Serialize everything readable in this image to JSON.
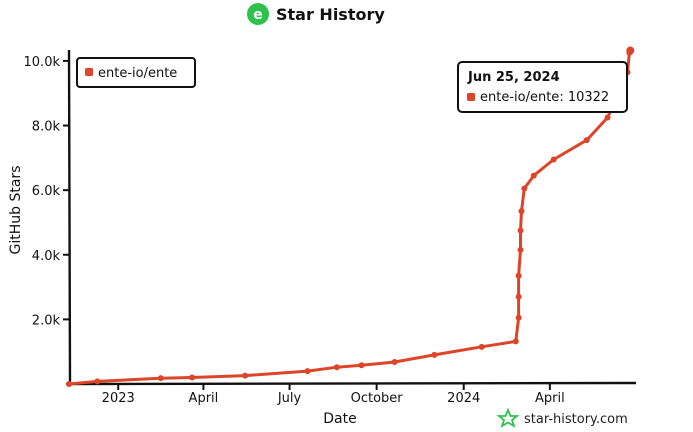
{
  "chart_data": {
    "type": "line",
    "title": "Star History",
    "xlabel": "Date",
    "ylabel": "GitHub Stars",
    "ylim": [
      0,
      10400
    ],
    "xlim": [
      "2022-11-10",
      "2024-07-01"
    ],
    "y_ticks": [
      {
        "value": 2000,
        "label": "2.0k"
      },
      {
        "value": 4000,
        "label": "4.0k"
      },
      {
        "value": 6000,
        "label": "6.0k"
      },
      {
        "value": 8000,
        "label": "8.0k"
      },
      {
        "value": 10000,
        "label": "10.0k"
      }
    ],
    "x_ticks": [
      {
        "date": "2023-01-01",
        "label": "2023"
      },
      {
        "date": "2023-04-01",
        "label": "April"
      },
      {
        "date": "2023-07-01",
        "label": "July"
      },
      {
        "date": "2023-10-01",
        "label": "October"
      },
      {
        "date": "2024-01-01",
        "label": "2024"
      },
      {
        "date": "2024-04-01",
        "label": "April"
      }
    ],
    "legend_position": "top-left",
    "series": [
      {
        "name": "ente-io/ente",
        "color": "#dd4528",
        "points": [
          {
            "x": "2022-11-10",
            "y": 0
          },
          {
            "x": "2022-12-10",
            "y": 80
          },
          {
            "x": "2023-02-15",
            "y": 180
          },
          {
            "x": "2023-03-20",
            "y": 200
          },
          {
            "x": "2023-05-15",
            "y": 260
          },
          {
            "x": "2023-07-20",
            "y": 400
          },
          {
            "x": "2023-08-20",
            "y": 520
          },
          {
            "x": "2023-09-15",
            "y": 580
          },
          {
            "x": "2023-10-20",
            "y": 680
          },
          {
            "x": "2023-12-01",
            "y": 900
          },
          {
            "x": "2024-01-20",
            "y": 1150
          },
          {
            "x": "2024-02-25",
            "y": 1320
          },
          {
            "x": "2024-02-28",
            "y": 2050
          },
          {
            "x": "2024-02-28",
            "y": 2700
          },
          {
            "x": "2024-02-28",
            "y": 3350
          },
          {
            "x": "2024-03-01",
            "y": 4150
          },
          {
            "x": "2024-03-01",
            "y": 4750
          },
          {
            "x": "2024-03-02",
            "y": 5350
          },
          {
            "x": "2024-03-05",
            "y": 6050
          },
          {
            "x": "2024-03-15",
            "y": 6450
          },
          {
            "x": "2024-04-05",
            "y": 6950
          },
          {
            "x": "2024-05-10",
            "y": 7550
          },
          {
            "x": "2024-06-01",
            "y": 8250
          },
          {
            "x": "2024-06-22",
            "y": 9650
          },
          {
            "x": "2024-06-24",
            "y": 10250
          },
          {
            "x": "2024-06-25",
            "y": 10322
          }
        ]
      }
    ],
    "tooltip": {
      "date": "Jun 25, 2024",
      "series": "ente-io/ente",
      "value": "10322"
    }
  },
  "watermark": "star-history.com",
  "colors": {
    "series": "#dd4528",
    "axis": "#111111",
    "logo": "#2ec14c"
  }
}
